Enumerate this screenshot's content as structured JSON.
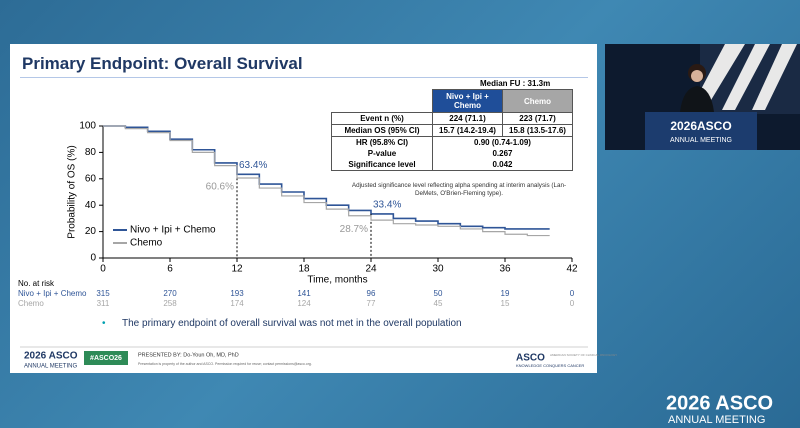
{
  "slide": {
    "title": "Primary Endpoint: Overall Survival",
    "median_fu": "Median FU : 31.3m",
    "results_table": {
      "header": [
        "Nivo + Ipi + Chemo",
        "Chemo"
      ],
      "rows": [
        [
          "Event n (%)",
          "224 (71.1)",
          "223 (71.7)"
        ],
        [
          "Median OS (95% CI)",
          "15.7 (14.2-19.4)",
          "15.8 (13.5-17.6)"
        ],
        [
          "HR (95.8% CI)",
          "0.90 (0.74-1.09)"
        ],
        [
          "P-value",
          "0.267"
        ],
        [
          "Significance level",
          "0.042"
        ]
      ],
      "note": "Adjusted significance level reflecting alpha spending at interim analysis (Lan-DeMets, O'Brien-Fleming type)."
    },
    "risk_table": {
      "title": "No. at risk",
      "rows": [
        {
          "name": "Nivo + Ipi + Chemo",
          "counts": [
            315,
            270,
            193,
            141,
            96,
            50,
            19,
            0
          ]
        },
        {
          "name": "Chemo",
          "counts": [
            311,
            258,
            174,
            124,
            77,
            45,
            15,
            0
          ]
        }
      ]
    },
    "bullet": "The primary endpoint of overall survival was not met in the overall population",
    "footer": {
      "logo": "2026 ASCO",
      "logo_sub": "ANNUAL MEETING",
      "hashtag": "#ASCO26",
      "presenter": "PRESENTED BY: Do-Youn Oh, MD, PhD",
      "notice": "Presentation is property of the author and ASCO. Permission required for reuse; contact permissions@asco.org.",
      "org": "ASCO",
      "org_sub": "AMERICAN SOCIETY OF CLINICAL ONCOLOGY",
      "org_tagline": "KNOWLEDGE CONQUERS CANCER"
    }
  },
  "video": {
    "logo": "2026ASCO",
    "logo_sub": "ANNUAL MEETING"
  },
  "watermark": {
    "logo": "2026 ASCO",
    "logo_sub": "ANNUAL MEETING"
  },
  "chart_data": {
    "type": "line",
    "x_label": "Time, months",
    "y_label": "Probability of OS (%)",
    "x": [
      0,
      2,
      4,
      6,
      8,
      10,
      12,
      14,
      16,
      18,
      20,
      22,
      24,
      26,
      28,
      30,
      32,
      34,
      36,
      38,
      40
    ],
    "series": [
      {
        "name": "Nivo + Ipi + Chemo",
        "color": "#2f5597",
        "values": [
          100,
          99,
          96,
          90,
          82,
          72,
          63.4,
          56,
          50,
          45,
          40,
          36,
          33.4,
          30,
          28,
          26,
          24,
          23,
          22,
          22,
          22
        ],
        "value_labels": [
          null,
          null,
          null,
          null,
          null,
          null,
          "63.4%",
          null,
          null,
          null,
          null,
          null,
          "33.4%",
          null,
          null,
          null,
          null,
          null,
          null,
          null,
          null
        ]
      },
      {
        "name": "Chemo",
        "color": "#a6a6a6",
        "values": [
          100,
          98,
          95,
          89,
          80,
          70,
          60.6,
          53,
          47,
          42,
          37,
          32,
          28.7,
          26,
          25,
          24,
          22,
          20,
          18,
          17,
          17
        ],
        "value_labels": [
          null,
          null,
          null,
          null,
          null,
          null,
          "60.6%",
          null,
          null,
          null,
          null,
          null,
          "28.7%",
          null,
          null,
          null,
          null,
          null,
          null,
          null,
          null
        ]
      }
    ],
    "xlim": [
      0,
      42
    ],
    "xticks": [
      0,
      6,
      12,
      18,
      24,
      30,
      36,
      42
    ],
    "ylim": [
      0,
      100
    ],
    "yticks": [
      0,
      20,
      40,
      60,
      80,
      100
    ],
    "legend": "lower left"
  }
}
